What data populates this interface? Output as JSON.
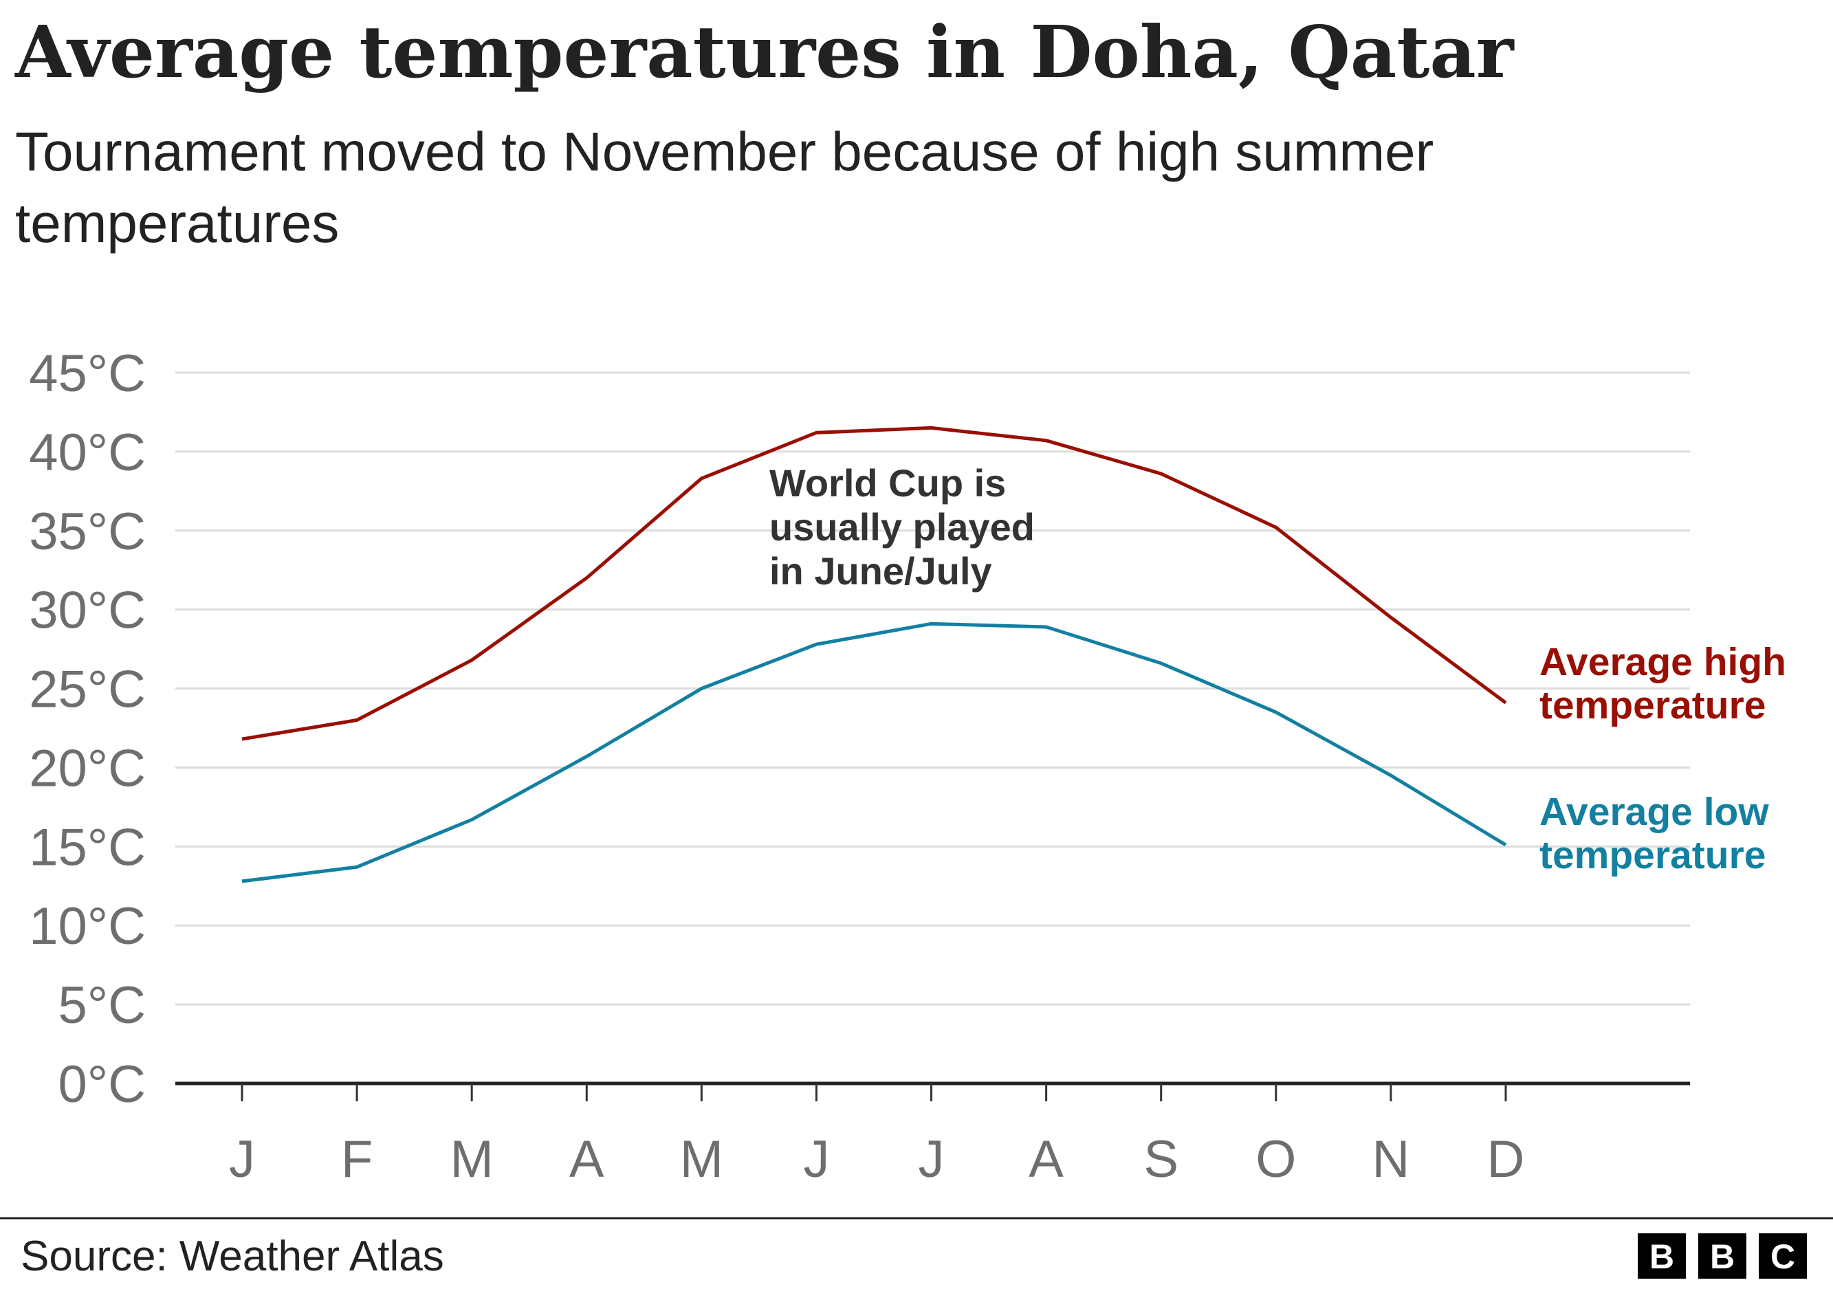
{
  "title": "Average temperatures in Doha, Qatar",
  "subtitle_line1": "Tournament moved to November because of high summer",
  "subtitle_line2": "temperatures",
  "source": "Source: Weather Atlas",
  "logo": "BBC",
  "chart_data": {
    "type": "line",
    "categories": [
      "J",
      "F",
      "M",
      "A",
      "M",
      "J",
      "J",
      "A",
      "S",
      "O",
      "N",
      "D"
    ],
    "y_tick_labels": [
      "0°C",
      "5°C",
      "10°C",
      "15°C",
      "20°C",
      "25°C",
      "30°C",
      "35°C",
      "40°C",
      "45°C"
    ],
    "ylim": [
      0,
      45
    ],
    "grid": true,
    "series": [
      {
        "name_line1": "Average high",
        "name_line2": "temperature",
        "color": "#990f04",
        "values": [
          21.8,
          23.0,
          26.8,
          32.0,
          38.3,
          41.2,
          41.5,
          40.7,
          38.6,
          35.2,
          29.5,
          24.1
        ]
      },
      {
        "name_line1": "Average low",
        "name_line2": "temperature",
        "color": "#1380a1",
        "values": [
          12.8,
          13.7,
          16.7,
          20.7,
          25.0,
          27.8,
          29.1,
          28.9,
          26.6,
          23.5,
          19.5,
          15.1
        ]
      }
    ],
    "annotation": [
      "World Cup is",
      "usually played",
      "in June/July"
    ]
  }
}
